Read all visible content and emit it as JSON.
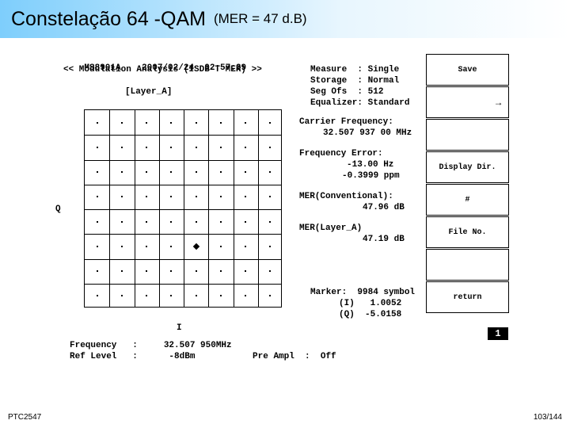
{
  "title": {
    "main": "Constelação 64 -QAM",
    "sub": "(MER = 47 d.B)"
  },
  "instrument": {
    "model": "MS8901A",
    "datetime": "2007/02/24  02:57:29",
    "mode_line": "<< Modulation Analysis (ISDB-T MER) >>",
    "measure": "Measure  : Single",
    "storage": "Storage  : Normal",
    "segofs": "Seg Ofs  : 512",
    "equalizer": "Equalizer: Standard",
    "layer": "[Layer_A]",
    "q_label": "Q",
    "i_label": "I"
  },
  "readouts": {
    "carrier_label": "Carrier Frequency:",
    "carrier_value": "32.507 937 00 MHz",
    "freqerr_label": "Frequency Error:",
    "freqerr_hz": "-13.00 Hz",
    "freqerr_ppm": "-0.3999 ppm",
    "mer_conv_label": "MER(Conventional):",
    "mer_conv_value": "47.96 dB",
    "mer_layer_label": "MER(Layer_A)",
    "mer_layer_value": "47.19 dB",
    "marker_line1": "Marker:  9984 symbol",
    "marker_line2": "(I)   1.0052",
    "marker_line3": "(Q)  -5.0158",
    "freq_line": "Frequency   :     32.507 950MHz",
    "ref_line": "Ref Level   :      -8dBm           Pre Ampl  :  Off"
  },
  "menu": {
    "items": [
      "Save",
      "",
      "",
      "Display Dir.",
      "#",
      "File No.",
      "",
      "return"
    ],
    "page": "1",
    "arrow": "→"
  },
  "constellation": {
    "grid_divisions": 8,
    "highlight_cell": {
      "col": 4,
      "row": 5
    }
  },
  "footer": {
    "left": "PTC2547",
    "right": "103/144"
  },
  "colors": {
    "gradient_start": "#7ecefc",
    "gradient_end": "#ffffff",
    "text": "#000000"
  }
}
